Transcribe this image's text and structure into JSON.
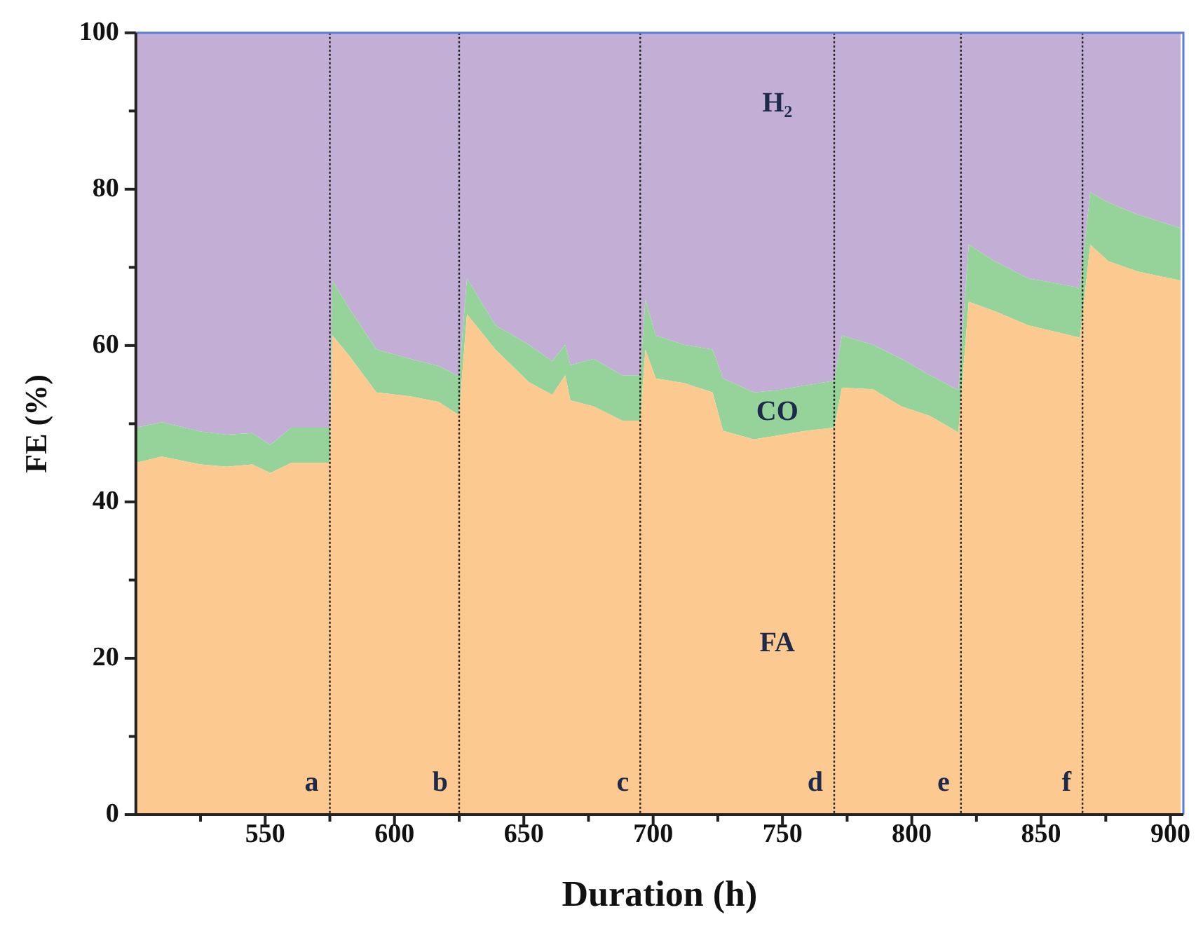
{
  "chart_data": {
    "type": "area",
    "stacked": true,
    "xlabel": "Duration (h)",
    "ylabel": "FE (%)",
    "x": [
      500,
      510,
      525,
      535,
      545,
      552,
      560,
      575,
      576,
      582,
      593,
      606,
      617,
      624,
      625,
      628,
      639,
      652,
      661,
      666,
      668,
      677,
      688,
      695,
      697,
      701,
      712,
      723,
      727,
      739,
      748,
      759,
      770,
      773,
      785,
      796,
      807,
      818,
      822,
      832,
      845,
      865,
      869,
      876,
      887,
      904
    ],
    "series": [
      {
        "name": "FA",
        "color": "#fcc990",
        "values": [
          45.0,
          45.8,
          44.8,
          44.5,
          44.8,
          43.7,
          45.0,
          45.0,
          61.3,
          58.9,
          54.0,
          53.5,
          52.8,
          51.3,
          51.3,
          64.0,
          59.5,
          55.3,
          53.7,
          56.2,
          53.0,
          52.2,
          50.4,
          50.4,
          59.5,
          55.8,
          55.2,
          54.0,
          49.1,
          48.0,
          48.5,
          49.1,
          49.5,
          54.6,
          54.4,
          52.2,
          51.0,
          48.9,
          65.6,
          64.4,
          62.6,
          61.0,
          72.9,
          70.8,
          69.5,
          68.3
        ]
      },
      {
        "name": "CO",
        "color": "#95d39a",
        "values": [
          4.5,
          4.4,
          4.2,
          4.1,
          4.0,
          3.6,
          4.5,
          4.5,
          7.0,
          6.1,
          5.5,
          4.8,
          4.6,
          4.9,
          4.9,
          4.6,
          3.1,
          4.8,
          4.3,
          3.9,
          4.5,
          6.1,
          5.8,
          5.8,
          6.4,
          5.5,
          4.9,
          5.5,
          6.7,
          6.0,
          5.8,
          5.8,
          6.0,
          6.7,
          5.7,
          6.1,
          5.2,
          5.4,
          7.3,
          6.4,
          6.0,
          6.4,
          6.7,
          7.5,
          7.3,
          6.7
        ]
      },
      {
        "name": "H₂",
        "color": "#c3aed6",
        "values": [
          50.5,
          49.8,
          51.0,
          51.4,
          51.2,
          52.7,
          50.5,
          50.5,
          31.7,
          35.0,
          40.5,
          41.7,
          42.6,
          43.8,
          43.8,
          31.4,
          37.4,
          39.9,
          42.0,
          39.9,
          42.5,
          41.7,
          43.8,
          43.8,
          34.1,
          38.7,
          39.9,
          40.5,
          44.2,
          46.0,
          45.7,
          45.1,
          44.5,
          38.7,
          39.9,
          41.7,
          43.8,
          45.7,
          27.1,
          29.2,
          31.4,
          32.6,
          20.4,
          21.7,
          23.2,
          25.0
        ]
      }
    ],
    "xlim": [
      500,
      905
    ],
    "xticks": [
      {
        "value": 525,
        "label": null
      },
      550,
      {
        "value": 575,
        "label": null
      },
      600,
      {
        "value": 625,
        "label": null
      },
      650,
      {
        "value": 675,
        "label": null
      },
      700,
      {
        "value": 725,
        "label": null
      },
      750,
      {
        "value": 775,
        "label": null
      },
      800,
      {
        "value": 825,
        "label": null
      },
      850,
      {
        "value": 875,
        "label": null
      },
      900
    ],
    "ylim": [
      0,
      100
    ],
    "yticks": [
      0,
      {
        "value": 10,
        "label": null
      },
      20,
      {
        "value": 30,
        "label": null
      },
      40,
      {
        "value": 50,
        "label": null
      },
      60,
      {
        "value": 70,
        "label": null
      },
      80,
      {
        "value": 90,
        "label": null
      },
      100
    ],
    "grid": false,
    "legend": false,
    "ref_lines": [
      {
        "axis": "x",
        "value": 575,
        "line_style": "dotted"
      },
      {
        "axis": "x",
        "value": 625,
        "line_style": "dotted"
      },
      {
        "axis": "x",
        "value": 695,
        "line_style": "dotted"
      },
      {
        "axis": "x",
        "value": 770,
        "line_style": "dotted"
      },
      {
        "axis": "x",
        "value": 819,
        "line_style": "dotted"
      },
      {
        "axis": "x",
        "value": 866,
        "line_style": "dotted"
      }
    ],
    "annotations": [
      "a",
      "b",
      "c",
      "d",
      "e",
      "f"
    ]
  }
}
